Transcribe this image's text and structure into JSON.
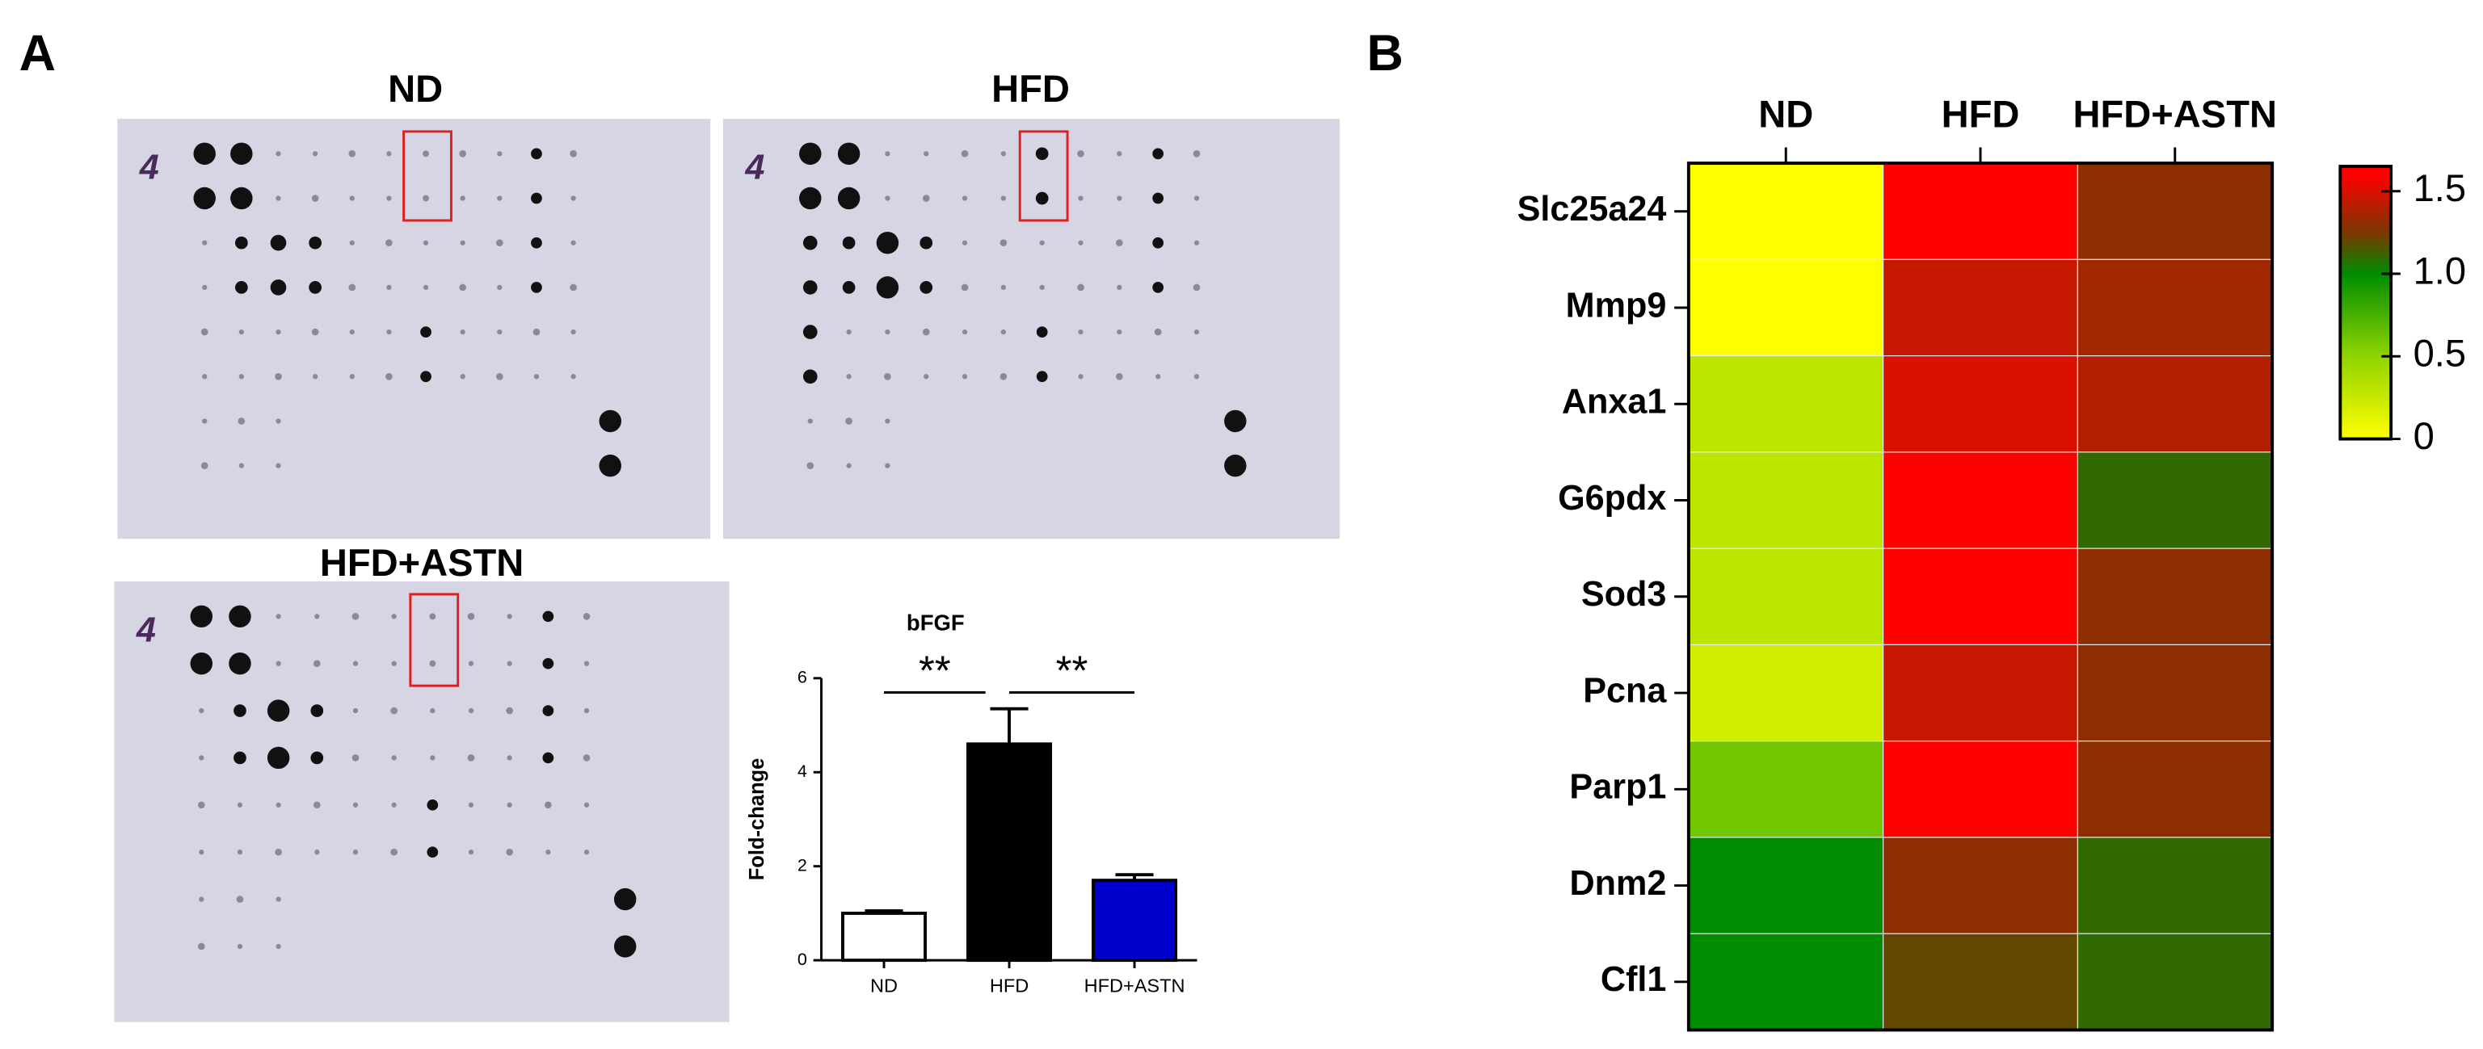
{
  "panel_labels": [
    "A",
    "B"
  ],
  "blots": [
    {
      "title": "ND",
      "label": "4"
    },
    {
      "title": "HFD",
      "label": "4"
    },
    {
      "title": "HFD+ASTN",
      "label": "4"
    }
  ],
  "chart_data": [
    {
      "type": "bar",
      "title": "bFGF",
      "ylabel": "Fold-change",
      "categories": [
        "ND",
        "HFD",
        "HFD+ASTN"
      ],
      "values": [
        1.0,
        4.6,
        1.7
      ],
      "errors": [
        0.05,
        0.75,
        0.12
      ],
      "colors": [
        "#ffffff",
        "#000000",
        "#0000cc"
      ],
      "ylim": [
        0,
        6
      ],
      "yticks": [
        0,
        2,
        4,
        6
      ],
      "annotations": [
        "**",
        "**"
      ]
    },
    {
      "type": "heatmap",
      "columns": [
        "ND",
        "HFD",
        "HFD+ASTN"
      ],
      "rows": [
        "Slc25a24",
        "Mmp9",
        "Anxa1",
        "G6pdx",
        "Sod3",
        "Pcna",
        "Parp1",
        "Dnm2",
        "Cfl1"
      ],
      "values": [
        [
          0.0,
          1.6,
          1.3
        ],
        [
          0.0,
          1.45,
          1.35
        ],
        [
          0.3,
          1.5,
          1.4
        ],
        [
          0.3,
          1.6,
          1.1
        ],
        [
          0.3,
          1.6,
          1.3
        ],
        [
          0.2,
          1.45,
          1.3
        ],
        [
          0.6,
          1.6,
          1.3
        ],
        [
          1.0,
          1.3,
          1.1
        ],
        [
          1.0,
          1.2,
          1.1
        ]
      ],
      "colorscale": [
        [
          0,
          "#ffff00"
        ],
        [
          0.5,
          "#8fd400"
        ],
        [
          1.0,
          "#008c00"
        ],
        [
          1.25,
          "#7a3600"
        ],
        [
          1.6,
          "#ff0000"
        ]
      ],
      "zlim": [
        0,
        1.65
      ],
      "zticks": [
        0,
        0.5,
        {
          "value": 1,
          "label": "1.0"
        },
        1.5
      ]
    }
  ]
}
